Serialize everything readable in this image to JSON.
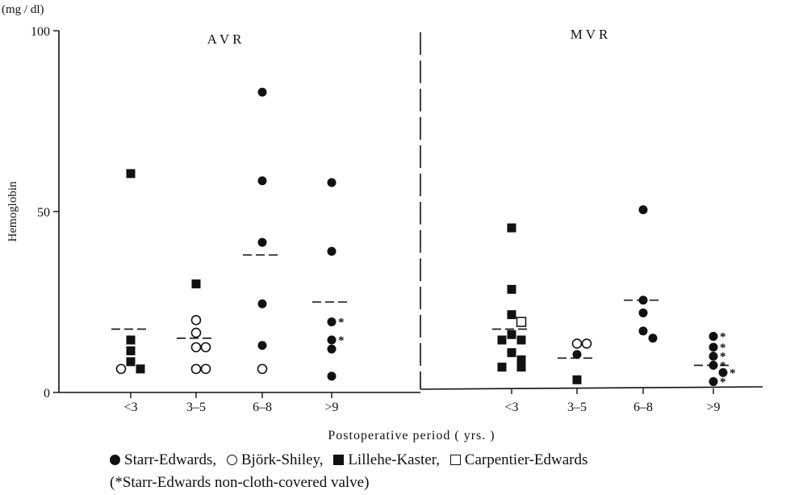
{
  "chart_data": {
    "type": "scatter",
    "unit_label": "(mg / dl)",
    "ylabel": "Hemoglobin",
    "xlabel": "Postoperative period ( yrs. )",
    "ylim": [
      0,
      100
    ],
    "yticks": [
      0,
      50,
      100
    ],
    "panels": [
      {
        "title": "A V R",
        "groups": [
          {
            "category": "<3",
            "mean": 17.5,
            "points": [
              {
                "marker": "filled-square",
                "value": 60.5
              },
              {
                "marker": "filled-square",
                "value": 14.5
              },
              {
                "marker": "filled-square",
                "value": 11.5
              },
              {
                "marker": "filled-square",
                "value": 8.5
              },
              {
                "marker": "filled-square",
                "value": 6.5
              },
              {
                "marker": "open-circle",
                "value": 6.5
              }
            ]
          },
          {
            "category": "3–5",
            "mean": 15,
            "points": [
              {
                "marker": "filled-square",
                "value": 30
              },
              {
                "marker": "open-circle",
                "value": 20
              },
              {
                "marker": "open-circle",
                "value": 16.5
              },
              {
                "marker": "open-circle",
                "value": 12.5
              },
              {
                "marker": "open-circle",
                "value": 12.5
              },
              {
                "marker": "open-circle",
                "value": 6.5
              },
              {
                "marker": "open-circle",
                "value": 6.5
              }
            ]
          },
          {
            "category": "6–8",
            "mean": 38,
            "points": [
              {
                "marker": "filled-circle",
                "value": 83
              },
              {
                "marker": "filled-circle",
                "value": 58.5
              },
              {
                "marker": "filled-circle",
                "value": 41.5
              },
              {
                "marker": "filled-circle",
                "value": 24.5
              },
              {
                "marker": "filled-circle",
                "value": 13
              },
              {
                "marker": "open-circle",
                "value": 6.5
              }
            ]
          },
          {
            "category": ">9",
            "mean": 25,
            "points": [
              {
                "marker": "filled-circle",
                "value": 58
              },
              {
                "marker": "filled-circle",
                "value": 39
              },
              {
                "marker": "filled-circle",
                "value": 19.5,
                "nonclothcovered": true
              },
              {
                "marker": "filled-circle",
                "value": 14.5,
                "nonclothcovered": true
              },
              {
                "marker": "filled-circle",
                "value": 12
              },
              {
                "marker": "filled-circle",
                "value": 4.5
              }
            ]
          }
        ]
      },
      {
        "title": "M V R",
        "groups": [
          {
            "category": "<3",
            "mean": 17.5,
            "points": [
              {
                "marker": "filled-square",
                "value": 45.5
              },
              {
                "marker": "filled-square",
                "value": 28.5
              },
              {
                "marker": "filled-square",
                "value": 21.5
              },
              {
                "marker": "open-square",
                "value": 19.5
              },
              {
                "marker": "filled-square",
                "value": 16
              },
              {
                "marker": "filled-square",
                "value": 14.5
              },
              {
                "marker": "filled-square",
                "value": 14.5
              },
              {
                "marker": "filled-square",
                "value": 11
              },
              {
                "marker": "filled-square",
                "value": 9
              },
              {
                "marker": "filled-square",
                "value": 7
              },
              {
                "marker": "filled-square",
                "value": 7
              }
            ]
          },
          {
            "category": "3–5",
            "mean": 9.5,
            "points": [
              {
                "marker": "open-circle",
                "value": 13.5
              },
              {
                "marker": "open-circle",
                "value": 13.5
              },
              {
                "marker": "filled-circle",
                "value": 10.5
              },
              {
                "marker": "filled-square",
                "value": 3.5
              }
            ]
          },
          {
            "category": "6–8",
            "mean": 25.5,
            "points": [
              {
                "marker": "filled-circle",
                "value": 50.5
              },
              {
                "marker": "filled-circle",
                "value": 25.5
              },
              {
                "marker": "filled-circle",
                "value": 22
              },
              {
                "marker": "filled-circle",
                "value": 17
              },
              {
                "marker": "filled-circle",
                "value": 15
              }
            ]
          },
          {
            "category": ">9",
            "mean": 7.5,
            "points": [
              {
                "marker": "filled-circle",
                "value": 15.5,
                "nonclothcovered": true
              },
              {
                "marker": "filled-circle",
                "value": 12.5,
                "nonclothcovered": true
              },
              {
                "marker": "filled-circle",
                "value": 10,
                "nonclothcovered": true
              },
              {
                "marker": "filled-circle",
                "value": 7.5,
                "nonclothcovered": true
              },
              {
                "marker": "filled-circle",
                "value": 5.5,
                "nonclothcovered": true
              },
              {
                "marker": "filled-circle",
                "value": 3,
                "nonclothcovered": true
              }
            ]
          }
        ]
      }
    ],
    "legend": {
      "items": [
        {
          "marker": "filled-circle",
          "label": "Starr-Edwards,"
        },
        {
          "marker": "open-circle",
          "label": "Björk-Shiley,"
        },
        {
          "marker": "filled-square",
          "label": "Lillehe-Kaster,"
        },
        {
          "marker": "open-square",
          "label": "Carpentier-Edwards"
        }
      ],
      "note": "(*Starr-Edwards non-cloth-covered valve)"
    }
  }
}
